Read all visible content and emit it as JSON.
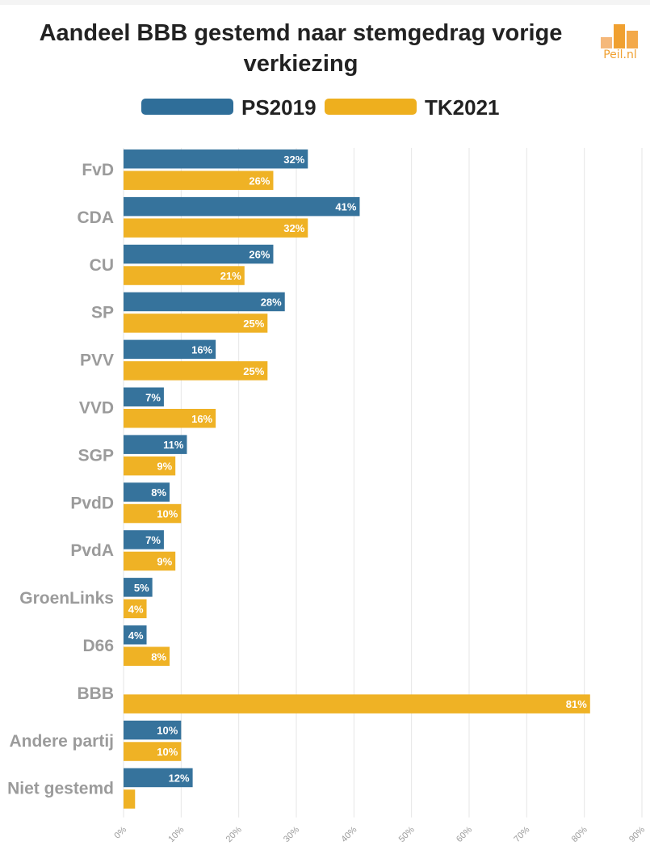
{
  "title": "Aandeel BBB gestemd naar stemgedrag vorige verkiezing",
  "logo": {
    "text": "Peil.nl",
    "icon": "bar-chart-logo-icon"
  },
  "colors": {
    "series1": "#2f6e99",
    "series2": "#eeaf1e",
    "grid": "#e6e6e6"
  },
  "legend": {
    "items": [
      "PS2019",
      "TK2021"
    ]
  },
  "chart_data": {
    "type": "bar",
    "orientation": "horizontal",
    "title": "Aandeel BBB gestemd naar stemgedrag vorige verkiezing",
    "categories": [
      "FvD",
      "CDA",
      "CU",
      "SP",
      "PVV",
      "VVD",
      "SGP",
      "PvdD",
      "PvdA",
      "GroenLinks",
      "D66",
      "BBB",
      "Andere partij",
      "Niet gestemd"
    ],
    "series": [
      {
        "name": "PS2019",
        "values": [
          32,
          41,
          26,
          28,
          16,
          7,
          11,
          8,
          7,
          5,
          4,
          null,
          10,
          12
        ],
        "labels": [
          "32%",
          "41%",
          "26%",
          "28%",
          "16%",
          "7%",
          "11%",
          "8%",
          "7%",
          "5%",
          "4%",
          "",
          "10%",
          "12%"
        ]
      },
      {
        "name": "TK2021",
        "values": [
          26,
          32,
          21,
          25,
          25,
          16,
          9,
          10,
          9,
          4,
          8,
          81,
          10,
          2
        ],
        "labels": [
          "26%",
          "32%",
          "21%",
          "25%",
          "25%",
          "16%",
          "9%",
          "10%",
          "9%",
          "4%",
          "8%",
          "81%",
          "10%",
          ""
        ]
      }
    ],
    "xlim": [
      0,
      90
    ],
    "xticks": [
      "0%",
      "10%",
      "20%",
      "30%",
      "40%",
      "50%",
      "60%",
      "70%",
      "80%",
      "90%"
    ],
    "xlabel": "",
    "ylabel": "",
    "grid": true,
    "legend_position": "top"
  }
}
